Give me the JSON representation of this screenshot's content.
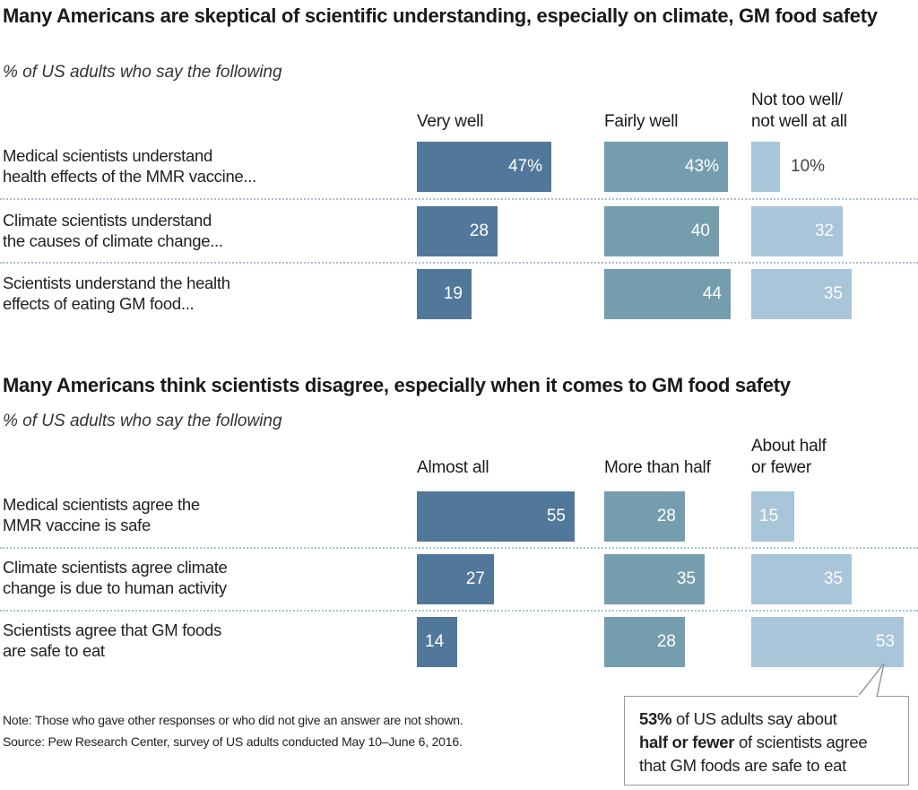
{
  "chart_data": [
    {
      "type": "bar",
      "orientation": "horizontal",
      "title": "Many Americans are skeptical of scientific understanding, especially on climate, GM food safety",
      "subtitle": "% of US adults who say the following",
      "categories": [
        "Medical scientists understand health effects of the MMR vaccine...",
        "Climate scientists understand the causes of climate change...",
        "Scientists understand the health effects of eating GM food..."
      ],
      "category_lines": [
        [
          "Medical scientists understand",
          "health effects of the MMR vaccine..."
        ],
        [
          "Climate scientists understand",
          "the causes of climate change..."
        ],
        [
          "Scientists understand the health",
          "effects of eating GM food..."
        ]
      ],
      "series": [
        {
          "name": "Very well",
          "name_lines": [
            "",
            "Very well"
          ],
          "color": "#51789a",
          "values": [
            47,
            28,
            19
          ],
          "labels": [
            "47%",
            "28",
            "19"
          ]
        },
        {
          "name": "Fairly well",
          "name_lines": [
            "",
            "Fairly well"
          ],
          "color": "#759dae",
          "values": [
            43,
            40,
            44
          ],
          "labels": [
            "43%",
            "40",
            "44"
          ]
        },
        {
          "name": "Not too well/ not well at all",
          "name_lines": [
            "Not too well/",
            "not well at all"
          ],
          "color": "#a9c5da",
          "values": [
            10,
            32,
            35
          ],
          "labels": [
            "10%",
            "32",
            "35"
          ]
        }
      ],
      "xlim": [
        0,
        100
      ],
      "grid": false,
      "legend": "column-headers"
    },
    {
      "type": "bar",
      "orientation": "horizontal",
      "title": "Many Americans think scientists disagree, especially when it comes to GM food safety",
      "subtitle": "% of US adults who say the following",
      "categories": [
        "Medical scientists agree the MMR vaccine is safe",
        "Climate scientists agree climate change is due to human activity",
        "Scientists agree that GM foods are safe to eat"
      ],
      "category_lines": [
        [
          "Medical scientists agree the",
          "MMR vaccine is safe"
        ],
        [
          "Climate scientists agree climate",
          "change is due to human activity"
        ],
        [
          "Scientists agree that GM foods",
          "are safe to eat"
        ]
      ],
      "series": [
        {
          "name": "Almost all",
          "name_lines": [
            "",
            "Almost all"
          ],
          "color": "#51789a",
          "values": [
            55,
            27,
            14
          ],
          "labels": [
            "55",
            "27",
            "14"
          ]
        },
        {
          "name": "More than half",
          "name_lines": [
            "",
            "More than half"
          ],
          "color": "#759dae",
          "values": [
            28,
            35,
            28
          ],
          "labels": [
            "28",
            "35",
            "28"
          ]
        },
        {
          "name": "About half or fewer",
          "name_lines": [
            "About half",
            "or fewer"
          ],
          "color": "#a9c5da",
          "values": [
            15,
            35,
            53
          ],
          "labels": [
            "15",
            "35",
            "53"
          ]
        }
      ],
      "xlim": [
        0,
        100
      ],
      "grid": false,
      "legend": "column-headers",
      "annotation": {
        "target": "Scientists agree that GM foods are safe to eat / About half or fewer",
        "bold1": "53%",
        "text1": " of US adults say about",
        "bold2": "half or fewer",
        "text2": " of scientists agree",
        "text3": "that GM foods are safe to eat"
      }
    }
  ],
  "footer": {
    "note": "Note: Those who gave other responses or who did not give an answer are not shown.",
    "source": "Source: Pew Research Center, survey of US adults conducted May 10–June 6, 2016."
  }
}
